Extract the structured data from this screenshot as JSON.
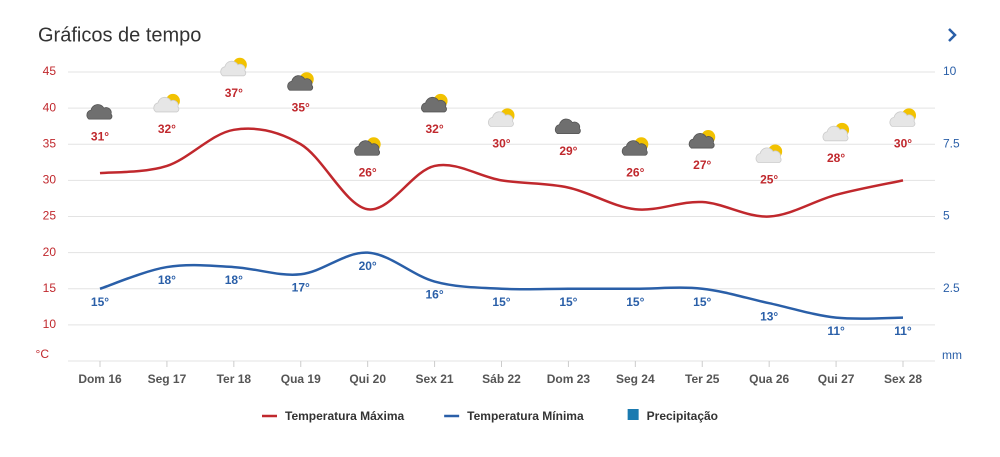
{
  "chart_data": {
    "type": "line",
    "title": "Gráficos de tempo",
    "categories": [
      "Dom 16",
      "Seg 17",
      "Ter 18",
      "Qua 19",
      "Qui 20",
      "Sex 21",
      "Sáb 22",
      "Dom 23",
      "Seg 24",
      "Ter 25",
      "Qua 26",
      "Qui 27",
      "Sex 28"
    ],
    "series": [
      {
        "name": "Temperatura Máxima",
        "color": "#c0282d",
        "values": [
          31,
          32,
          37,
          35,
          26,
          32,
          30,
          29,
          26,
          27,
          25,
          28,
          30
        ],
        "value_labels": [
          "31°",
          "32°",
          "37°",
          "35°",
          "26°",
          "32°",
          "30°",
          "29°",
          "26°",
          "27°",
          "25°",
          "28°",
          "30°"
        ]
      },
      {
        "name": "Temperatura Mínima",
        "color": "#2a5fa8",
        "values": [
          15,
          18,
          18,
          17,
          20,
          16,
          15,
          15,
          15,
          15,
          13,
          11,
          11
        ],
        "value_labels": [
          "15°",
          "18°",
          "18°",
          "17°",
          "20°",
          "16°",
          "15°",
          "15°",
          "15°",
          "15°",
          "13°",
          "11°",
          "11°"
        ]
      },
      {
        "name": "Precipitação",
        "color": "#1a7ab0",
        "axis": "y2",
        "values": [
          null,
          null,
          null,
          null,
          null,
          null,
          null,
          null,
          null,
          null,
          null,
          null,
          null
        ]
      }
    ],
    "ylabel": "°C",
    "y2label": "mm",
    "ylim": [
      5,
      45
    ],
    "yticks": [
      10,
      15,
      20,
      25,
      30,
      35,
      40,
      45
    ],
    "y2lim": [
      0,
      10
    ],
    "y2ticks": [
      {
        "value": 2.5,
        "label": "2.5"
      },
      5,
      {
        "value": 7.5,
        "label": "7.5"
      },
      10
    ],
    "grid": true,
    "legend": "bottom"
  }
}
